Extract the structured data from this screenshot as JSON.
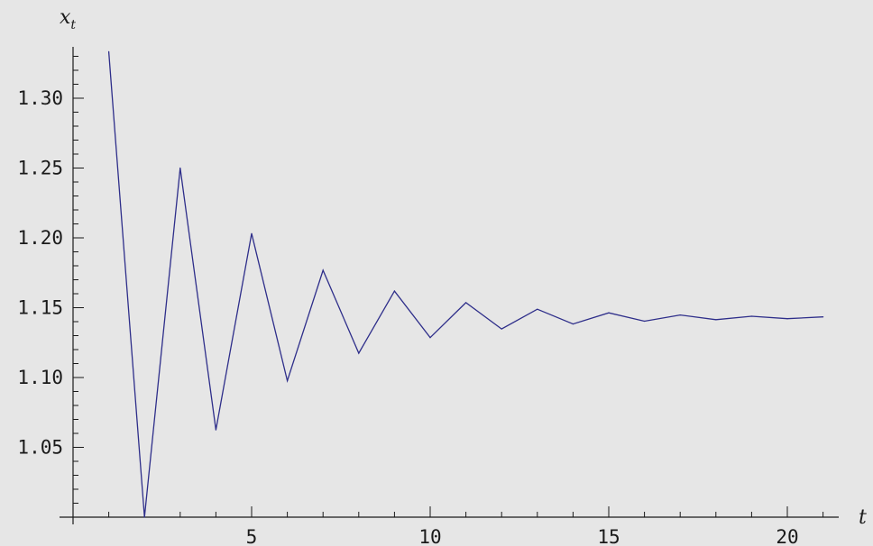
{
  "chart_data": {
    "type": "line",
    "xlabel": "t",
    "ylabel_main": "x",
    "ylabel_sub": "t",
    "x_ticks": [
      5,
      10,
      15,
      20
    ],
    "x_tick_labels": [
      "5",
      "10",
      "15",
      "20"
    ],
    "y_ticks": [
      1.05,
      1.1,
      1.15,
      1.2,
      1.25,
      1.3
    ],
    "y_tick_labels": [
      "1.05",
      "1.10",
      "1.15",
      "1.20",
      "1.25",
      "1.30"
    ],
    "xlim": [
      0,
      21.5
    ],
    "ylim": [
      1.0,
      1.34
    ],
    "series": [
      {
        "x": [
          1,
          2,
          3,
          4,
          5,
          6,
          7,
          8,
          9,
          10,
          11,
          12,
          13,
          14,
          15,
          16,
          17,
          18,
          19,
          20,
          21
        ],
        "values": [
          1.3333,
          1.0,
          1.25,
          1.0625,
          1.2031,
          1.0977,
          1.1768,
          1.1174,
          1.1619,
          1.1286,
          1.1536,
          1.1348,
          1.1489,
          1.1383,
          1.1463,
          1.1403,
          1.1448,
          1.1414,
          1.1439,
          1.1421,
          1.1434
        ],
        "color": "#2e2e8a"
      }
    ],
    "grid": false,
    "legend": "none"
  }
}
